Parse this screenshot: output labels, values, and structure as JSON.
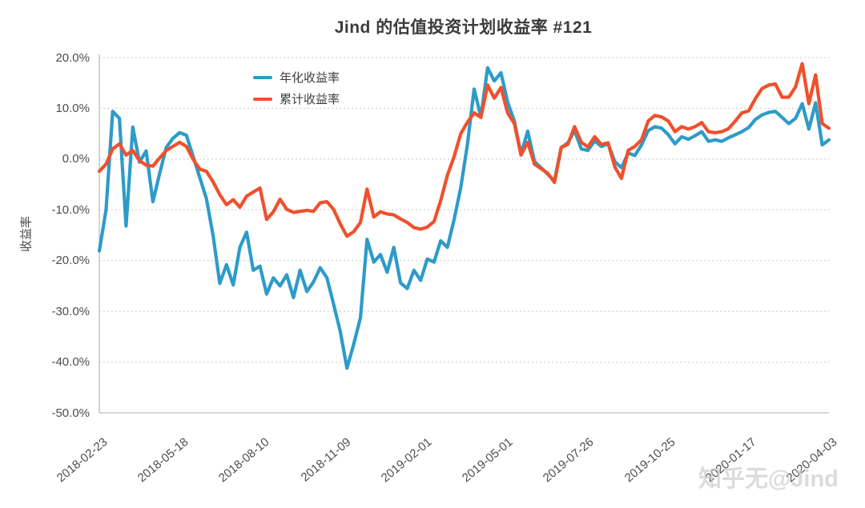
{
  "watermark": "知乎无@Jind",
  "chart_data": {
    "type": "line",
    "title": "Jind 的估值投资计划收益率 #121",
    "xlabel": "",
    "ylabel": "收益率",
    "ylim": [
      -50,
      20
    ],
    "grid": "horizontal-dotted",
    "legend_position": "inside-top-left",
    "yticks": [
      20,
      10,
      0,
      -10,
      -20,
      -30,
      -40,
      -50
    ],
    "ytick_labels": [
      "20.0%",
      "10.0%",
      "0.0%",
      "-10.0%",
      "-20.0%",
      "-30.0%",
      "-40.0%",
      "-50.0%"
    ],
    "xtick_labels": [
      "2018-02-23",
      "2018-05-18",
      "2018-08-10",
      "2018-11-09",
      "2019-02-01",
      "2019-05-01",
      "2019-07-26",
      "2019-10-25",
      "2020-01-17",
      "2020-04-03"
    ],
    "x_unit": "weekly observations from 2018-02-23 to 2020-04-03",
    "series": [
      {
        "name": "年化收益率",
        "color": "#2D9BC9",
        "values": [
          -18.1,
          -10.0,
          9.4,
          8.0,
          -13.2,
          6.3,
          -0.6,
          1.6,
          -8.4,
          -2.9,
          2.3,
          4.1,
          5.2,
          4.7,
          0.6,
          -3.6,
          -7.8,
          -15.1,
          -24.5,
          -20.8,
          -24.8,
          -17.4,
          -14.4,
          -21.9,
          -21.1,
          -26.6,
          -23.4,
          -25.0,
          -22.8,
          -27.3,
          -21.9,
          -26.1,
          -24.2,
          -21.4,
          -23.4,
          -28.6,
          -34.0,
          -41.2,
          -36.5,
          -31.3,
          -15.8,
          -20.3,
          -18.8,
          -22.3,
          -17.4,
          -24.4,
          -25.5,
          -21.9,
          -23.9,
          -19.7,
          -20.3,
          -16.1,
          -17.4,
          -11.9,
          -5.6,
          3.0,
          13.8,
          8.3,
          18.0,
          15.4,
          17.0,
          11.2,
          7.5,
          1.0,
          5.5,
          -0.5,
          -1.7,
          -3.0,
          -4.3,
          2.3,
          3.2,
          5.6,
          2.0,
          1.7,
          3.6,
          2.5,
          3.0,
          -0.5,
          -1.7,
          1.2,
          0.7,
          2.8,
          5.6,
          6.4,
          6.1,
          4.8,
          3.0,
          4.4,
          3.9,
          4.6,
          5.4,
          3.5,
          3.8,
          3.5,
          4.2,
          4.8,
          5.4,
          6.2,
          7.8,
          8.7,
          9.2,
          9.4,
          8.2,
          7.0,
          8.0,
          10.9,
          5.9,
          11.1,
          2.8,
          3.8
        ]
      },
      {
        "name": "累计收益率",
        "color": "#F0502C",
        "values": [
          -2.4,
          -1.0,
          2.0,
          3.0,
          0.8,
          1.7,
          -0.3,
          -1.2,
          -1.4,
          0.2,
          1.7,
          2.5,
          3.3,
          2.5,
          0.0,
          -2.0,
          -2.4,
          -4.5,
          -7.0,
          -9.0,
          -8.0,
          -9.5,
          -7.3,
          -6.5,
          -5.7,
          -11.9,
          -10.4,
          -7.9,
          -9.9,
          -10.5,
          -10.3,
          -10.1,
          -10.3,
          -8.6,
          -8.4,
          -9.9,
          -12.8,
          -15.2,
          -14.3,
          -12.5,
          -5.9,
          -11.4,
          -10.4,
          -10.8,
          -11.0,
          -11.8,
          -12.5,
          -13.5,
          -13.8,
          -13.4,
          -12.3,
          -8.2,
          -3.2,
          0.5,
          5.0,
          7.3,
          9.1,
          8.2,
          14.6,
          12.0,
          14.1,
          9.1,
          7.0,
          0.8,
          3.3,
          -1.0,
          -1.9,
          -2.8,
          -4.6,
          2.3,
          2.9,
          6.4,
          3.3,
          2.4,
          4.4,
          2.9,
          3.2,
          -1.5,
          -3.8,
          1.7,
          2.5,
          3.8,
          7.5,
          8.6,
          8.3,
          7.5,
          5.4,
          6.4,
          5.9,
          6.4,
          7.2,
          5.4,
          5.2,
          5.4,
          6.0,
          7.5,
          9.1,
          9.5,
          11.9,
          13.9,
          14.6,
          14.8,
          12.2,
          12.2,
          14.2,
          18.8,
          10.9,
          16.6,
          7.0,
          6.1
        ]
      }
    ]
  },
  "style": {
    "grid_color": "#c8c8c8",
    "axis_color": "#bdbdbd",
    "tick_text_color": "#4d4d4d",
    "title_color": "#3b3b3b",
    "watermark_color": "#c4c4c4"
  }
}
